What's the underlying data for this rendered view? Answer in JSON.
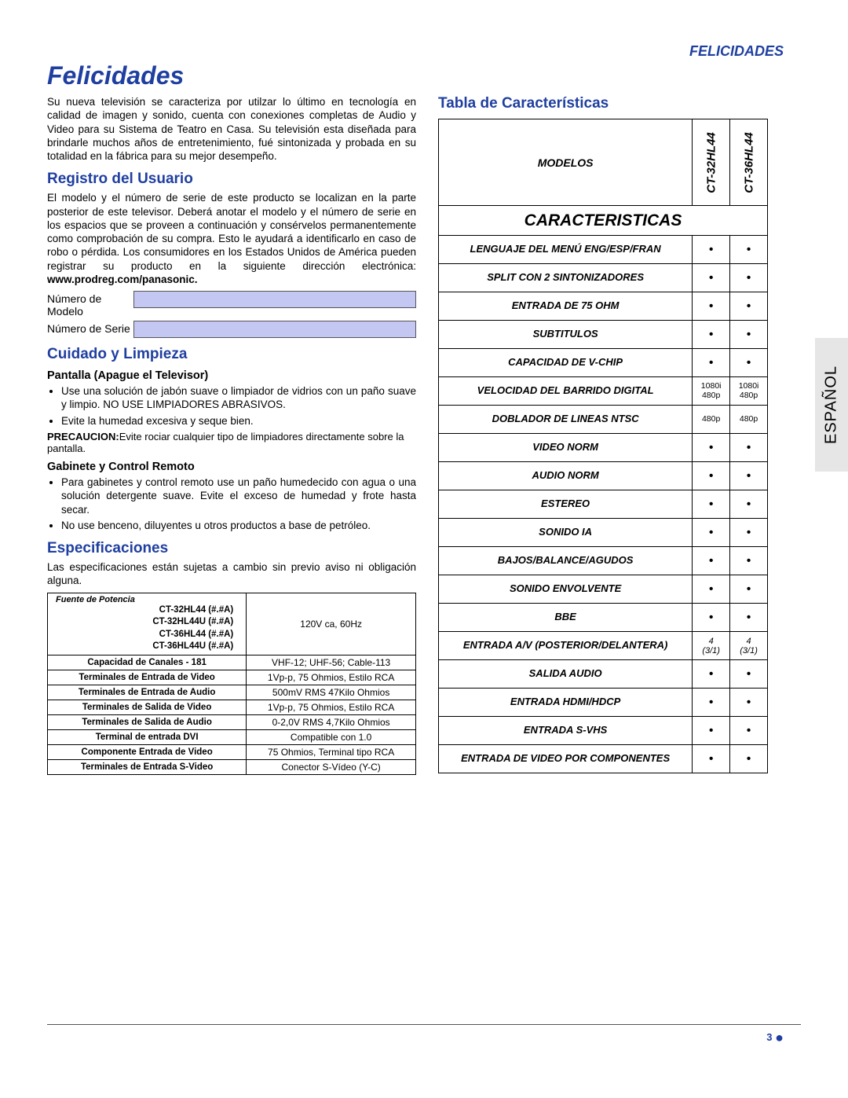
{
  "header": {
    "right": "FELICIDADES",
    "title": "Felicidades"
  },
  "intro": "Su nueva televisión se caracteriza por utilzar lo último en tecnología en calidad de imagen y sonido, cuenta con conexiones completas de Audio y Video para su Sistema de Teatro en Casa. Su televisión esta diseñada para brindarle muchos años de entretenimiento, fué sintonizada y probada en su totalidad en la fábrica para su mejor desempeño.",
  "registro": {
    "title": "Registro del Usuario",
    "body": "El modelo y el número de serie de este producto se localizan en la parte posterior de este televisor. Deberá anotar el modelo y el número de serie en los espacios que se proveen a continuación y consérvelos permanentemente como comprobación de su compra. Esto le ayudará a identificarlo en caso de robo o pérdida. Los consumidores en los Estados Unidos de América pueden registrar su producto en la siguiente dirección electrónica:",
    "url": "www.prodreg.com/panasonic.",
    "field_model": "Número de Modelo",
    "field_serial": "Número de Serie"
  },
  "cuidado": {
    "title": "Cuidado y Limpieza",
    "h3a": "Pantalla (Apague el Televisor)",
    "a1": "Use una solución de jabón suave o limpiador de vidrios con un paño suave y limpio. NO USE LIMPIADORES ABRASIVOS.",
    "a2": "Evite la humedad excesiva y seque bien.",
    "precaution_lbl": "PRECAUCION:",
    "precaution_txt": "Evite rociar cualquier tipo de limpiadores directamente sobre la pantalla.",
    "h3b": "Gabinete y Control Remoto",
    "b1": "Para gabinetes y control remoto use un paño humedecido con agua o una solución detergente suave. Evite el exceso de humedad y frote hasta secar.",
    "b2": "No use benceno, diluyentes u otros productos a base de petróleo."
  },
  "spec": {
    "title": "Especificaciones",
    "intro": "Las especificaciones están sujetas a cambio sin previo aviso ni obligación alguna.",
    "power_lbl": "Fuente de Potencia",
    "power_models": [
      "CT-32HL44    (#.#A)",
      "CT-32HL44U  (#.#A)",
      "CT-36HL44    (#.#A)",
      "CT-36HL44U  (#.#A)"
    ],
    "power_val": "120V ca, 60Hz",
    "rows": [
      {
        "l": "Capacidad de Canales - 181",
        "v": "VHF-12; UHF-56; Cable-113"
      },
      {
        "l": "Terminales de Entrada de Video",
        "v": "1Vp-p, 75 Ohmios, Estilo RCA"
      },
      {
        "l": "Terminales de Entrada de Audio",
        "v": "500mV RMS 47Kilo Ohmios"
      },
      {
        "l": "Terminales de Salida de Video",
        "v": "1Vp-p, 75 Ohmios, Estilo RCA"
      },
      {
        "l": "Terminales de Salida de Audio",
        "v": "0-2,0V RMS 4,7Kilo Ohmios"
      },
      {
        "l": "Terminal de entrada DVI",
        "v": "Compatible con 1.0"
      },
      {
        "l": "Componente Entrada de Video",
        "v": "75 Ohmios, Terminal tipo RCA"
      },
      {
        "l": "Terminales de Entrada S-Video",
        "v": "Conector S-Vídeo (Y-C)"
      }
    ]
  },
  "tabla": {
    "title": "Tabla  de Características",
    "modelos_lbl": "MODELOS",
    "models": [
      "CT-32HL44",
      "CT-36HL44"
    ],
    "caracter": "CARACTERISTICAS",
    "rows": [
      {
        "l": "LENGUAJE DEL MENÚ ENG/ESP/FRAN",
        "a": "•",
        "b": "•"
      },
      {
        "l": "SPLIT CON 2 SINTONIZADORES",
        "a": "•",
        "b": "•"
      },
      {
        "l": "ENTRADA DE 75 OHM",
        "a": "•",
        "b": "•"
      },
      {
        "l": "SUBTITULOS",
        "a": "•",
        "b": "•"
      },
      {
        "l": "CAPACIDAD DE V-CHIP",
        "a": "•",
        "b": "•"
      },
      {
        "l": "VELOCIDAD DEL BARRIDO DIGITAL",
        "a": "1080i, 480p",
        "b": "1080i, 480p",
        "small": true
      },
      {
        "l": "DOBLADOR DE LINEAS NTSC",
        "a": "480p",
        "b": "480p",
        "small": true
      },
      {
        "l": "VIDEO NORM",
        "a": "•",
        "b": "•"
      },
      {
        "l": "AUDIO NORM",
        "a": "•",
        "b": "•"
      },
      {
        "l": "ESTEREO",
        "a": "•",
        "b": "•"
      },
      {
        "l": "SONIDO IA",
        "a": "•",
        "b": "•"
      },
      {
        "l": "BAJOS/BALANCE/AGUDOS",
        "a": "•",
        "b": "•"
      },
      {
        "l": "SONIDO ENVOLVENTE",
        "a": "•",
        "b": "•"
      },
      {
        "l": "BBE",
        "a": "•",
        "b": "•"
      },
      {
        "l": "ENTRADA A/V (POSTERIOR/DELANTERA)",
        "a": "4 (3/1)",
        "b": "4 (3/1)",
        "ital": true
      },
      {
        "l": "SALIDA AUDIO",
        "a": "•",
        "b": "•"
      },
      {
        "l": "ENTRADA HDMI/HDCP",
        "a": "•",
        "b": "•"
      },
      {
        "l": "ENTRADA S-VHS",
        "a": "•",
        "b": "•"
      },
      {
        "l": "ENTRADA DE VIDEO POR COMPONENTES",
        "a": "•",
        "b": "•"
      }
    ]
  },
  "tab": "ESPAÑOL",
  "footer": {
    "page": "3"
  }
}
